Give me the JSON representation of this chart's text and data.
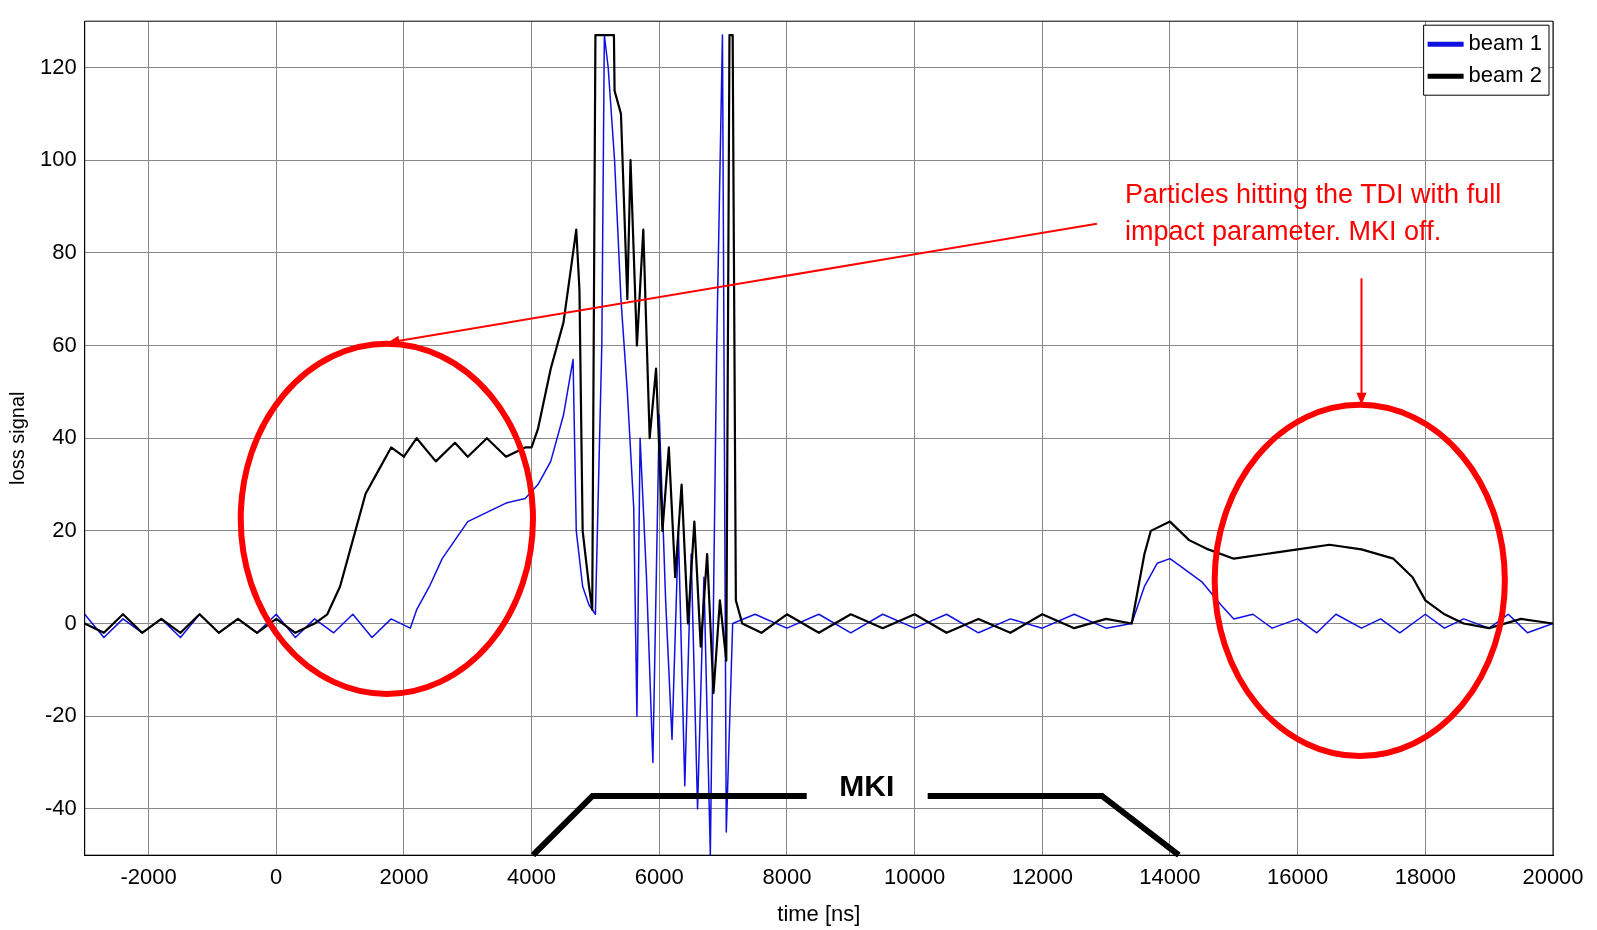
{
  "chart_data": {
    "type": "line",
    "xlabel": "time [ns]",
    "ylabel": "loss signal",
    "xlim": [
      -3000,
      20000
    ],
    "xticks": [
      -2000,
      0,
      2000,
      4000,
      6000,
      8000,
      10000,
      12000,
      14000,
      16000,
      18000,
      20000
    ],
    "ylim": [
      -50,
      130
    ],
    "yticks": [
      -40,
      -20,
      0,
      20,
      40,
      60,
      80,
      100,
      120
    ],
    "grid": true,
    "legend": "top right",
    "line_style": "solid",
    "marker": "none",
    "annotations": [
      "Particles hitting the TDI with full impact parameter. MKI off.",
      "MKI"
    ],
    "series": [
      {
        "name": "beam 1",
        "color": "#1010e0",
        "x": [
          -3000,
          -2700,
          -2400,
          -2100,
          -1800,
          -1500,
          -1200,
          -900,
          -600,
          -300,
          0,
          300,
          600,
          900,
          1200,
          1500,
          1800,
          2100,
          2200,
          2400,
          2600,
          2800,
          3000,
          3300,
          3600,
          3900,
          4100,
          4300,
          4500,
          4650,
          4700,
          4800,
          4900,
          5000,
          5100,
          5140,
          5200,
          5300,
          5400,
          5500,
          5600,
          5650,
          5700,
          5800,
          5900,
          6000,
          6100,
          6200,
          6300,
          6400,
          6500,
          6600,
          6700,
          6800,
          6900,
          6990,
          7050,
          7150,
          7500,
          8000,
          8500,
          9000,
          9500,
          10000,
          10500,
          11000,
          11500,
          12000,
          12500,
          13000,
          13400,
          13600,
          13800,
          14000,
          14200,
          14500,
          14800,
          15000,
          15300,
          15600,
          16000,
          16300,
          16600,
          17000,
          17300,
          17600,
          18000,
          18300,
          18600,
          19000,
          19300,
          19600,
          20000
        ],
        "values": [
          2,
          -3,
          1,
          -2,
          1,
          -3,
          2,
          -2,
          1,
          -2,
          2,
          -3,
          1,
          -2,
          2,
          -3,
          1,
          -1,
          3,
          8,
          14,
          18,
          22,
          24,
          26,
          27,
          30,
          35,
          45,
          57,
          20,
          8,
          4,
          2,
          60,
          127,
          120,
          100,
          70,
          50,
          25,
          -20,
          40,
          10,
          -30,
          45,
          5,
          -25,
          20,
          -35,
          15,
          -40,
          10,
          -50,
          60,
          127,
          -45,
          0,
          2,
          -1,
          2,
          -2,
          2,
          -1,
          2,
          -2,
          1,
          -1,
          2,
          -1,
          0,
          8,
          13,
          14,
          12,
          9,
          4,
          1,
          2,
          -1,
          1,
          -2,
          2,
          -1,
          1,
          -2,
          2,
          -1,
          1,
          -1,
          2,
          -2,
          0
        ]
      },
      {
        "name": "beam 2",
        "color": "#000000",
        "x": [
          -3000,
          -2700,
          -2400,
          -2100,
          -1800,
          -1500,
          -1200,
          -900,
          -600,
          -300,
          0,
          300,
          600,
          800,
          1000,
          1200,
          1400,
          1600,
          1800,
          2000,
          2200,
          2500,
          2800,
          3000,
          3300,
          3600,
          3900,
          4000,
          4100,
          4300,
          4500,
          4600,
          4700,
          4750,
          4800,
          4900,
          4950,
          5000,
          5150,
          5290,
          5300,
          5400,
          5500,
          5550,
          5650,
          5750,
          5850,
          5950,
          6050,
          6150,
          6250,
          6350,
          6450,
          6550,
          6650,
          6750,
          6850,
          6950,
          7050,
          7100,
          7150,
          7200,
          7300,
          7600,
          8000,
          8500,
          9000,
          9500,
          10000,
          10500,
          11000,
          11500,
          12000,
          12500,
          13000,
          13400,
          13600,
          13700,
          14000,
          14300,
          14600,
          15000,
          15500,
          16000,
          16500,
          17000,
          17500,
          17800,
          18000,
          18300,
          18600,
          19000,
          19500,
          20000
        ],
        "values": [
          0,
          -2,
          2,
          -2,
          1,
          -2,
          2,
          -2,
          1,
          -2,
          1,
          -2,
          0,
          2,
          8,
          18,
          28,
          33,
          38,
          36,
          40,
          35,
          39,
          36,
          40,
          36,
          38,
          38,
          42,
          55,
          65,
          75,
          85,
          72,
          20,
          8,
          3,
          127,
          127,
          127,
          115,
          110,
          70,
          100,
          60,
          85,
          40,
          55,
          20,
          38,
          10,
          30,
          0,
          22,
          -5,
          15,
          -15,
          5,
          -8,
          127,
          127,
          5,
          0,
          -2,
          2,
          -2,
          2,
          -1,
          2,
          -2,
          1,
          -2,
          2,
          -1,
          1,
          0,
          15,
          20,
          22,
          18,
          16,
          14,
          15,
          16,
          17,
          16,
          14,
          10,
          5,
          2,
          0,
          -1,
          1,
          0
        ]
      }
    ]
  }
}
